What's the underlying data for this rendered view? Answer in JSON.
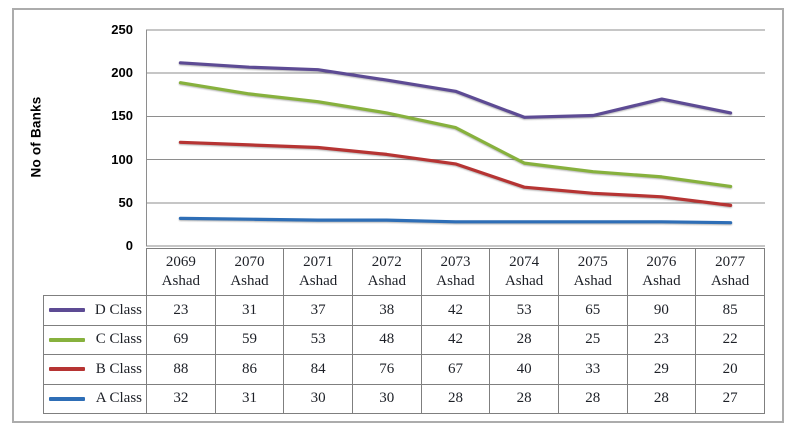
{
  "chart": {
    "y_axis_title": "No of Banks"
  },
  "colors": {
    "gridline": "#8E8E8E",
    "axis": "#8E8E8E",
    "frame_border": "#ACACAC",
    "table_border": "#7F7F7F",
    "text": "#1D2027",
    "a_class": "#2E6EB6",
    "b_class": "#B63433",
    "c_class": "#87B13D",
    "d_class": "#5D4B94"
  },
  "chart_data": {
    "type": "line",
    "stacked": true,
    "title": "",
    "xlabel": "",
    "ylabel": "No of Banks",
    "ylim": [
      0,
      250
    ],
    "y_ticks": [
      0,
      50,
      100,
      150,
      200,
      250
    ],
    "grid": true,
    "legend_position": "left-of-data-table",
    "categories": [
      "2069 Ashad",
      "2070 Ashad",
      "2071 Ashad",
      "2072 Ashad",
      "2073 Ashad",
      "2074 Ashad",
      "2075 Ashad",
      "2076 Ashad",
      "2077 Ashad"
    ],
    "series": [
      {
        "name": "D Class",
        "color": "#5D4B94",
        "values": [
          23,
          31,
          37,
          38,
          42,
          53,
          65,
          90,
          85
        ]
      },
      {
        "name": "C Class",
        "color": "#87B13D",
        "values": [
          69,
          59,
          53,
          48,
          42,
          28,
          25,
          23,
          22
        ]
      },
      {
        "name": "B Class",
        "color": "#B63433",
        "values": [
          88,
          86,
          84,
          76,
          67,
          40,
          33,
          29,
          20
        ]
      },
      {
        "name": "A Class",
        "color": "#2E6EB6",
        "values": [
          32,
          31,
          30,
          30,
          28,
          28,
          28,
          28,
          27
        ]
      }
    ],
    "stack_order_bottom_up": [
      "A Class",
      "B Class",
      "C Class",
      "D Class"
    ]
  }
}
